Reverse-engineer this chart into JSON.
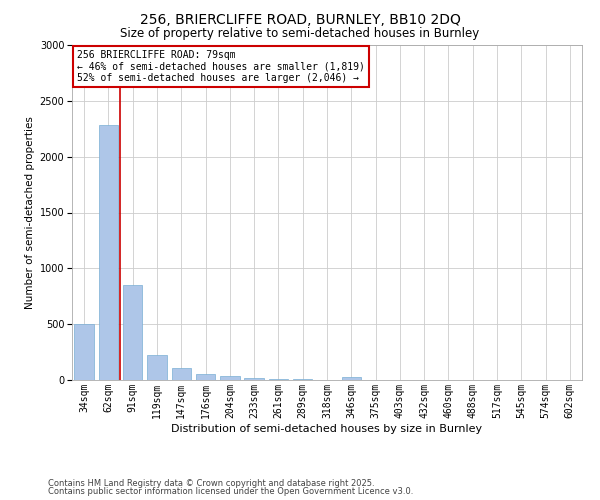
{
  "title1": "256, BRIERCLIFFE ROAD, BURNLEY, BB10 2DQ",
  "title2": "Size of property relative to semi-detached houses in Burnley",
  "xlabel": "Distribution of semi-detached houses by size in Burnley",
  "ylabel": "Number of semi-detached properties",
  "categories": [
    "34sqm",
    "62sqm",
    "91sqm",
    "119sqm",
    "147sqm",
    "176sqm",
    "204sqm",
    "233sqm",
    "261sqm",
    "289sqm",
    "318sqm",
    "346sqm",
    "375sqm",
    "403sqm",
    "432sqm",
    "460sqm",
    "488sqm",
    "517sqm",
    "545sqm",
    "574sqm",
    "602sqm"
  ],
  "values": [
    500,
    2280,
    850,
    220,
    105,
    55,
    35,
    20,
    10,
    5,
    3,
    30,
    0,
    0,
    0,
    0,
    0,
    0,
    0,
    0,
    0
  ],
  "bar_color": "#aec6e8",
  "bar_edge_color": "#7aafd4",
  "vline_color": "#cc0000",
  "vline_x": 1.47,
  "annotation_title": "256 BRIERCLIFFE ROAD: 79sqm",
  "annotation_line2": "← 46% of semi-detached houses are smaller (1,819)",
  "annotation_line3": "52% of semi-detached houses are larger (2,046) →",
  "annotation_box_color": "#ffffff",
  "annotation_box_edge": "#cc0000",
  "ylim": [
    0,
    3000
  ],
  "yticks": [
    0,
    500,
    1000,
    1500,
    2000,
    2500,
    3000
  ],
  "footnote1": "Contains HM Land Registry data © Crown copyright and database right 2025.",
  "footnote2": "Contains public sector information licensed under the Open Government Licence v3.0.",
  "bg_color": "#ffffff",
  "grid_color": "#cccccc",
  "title1_fontsize": 10,
  "title2_fontsize": 8.5,
  "xlabel_fontsize": 8,
  "ylabel_fontsize": 7.5,
  "tick_fontsize": 7,
  "ann_fontsize": 7,
  "footnote_fontsize": 6
}
